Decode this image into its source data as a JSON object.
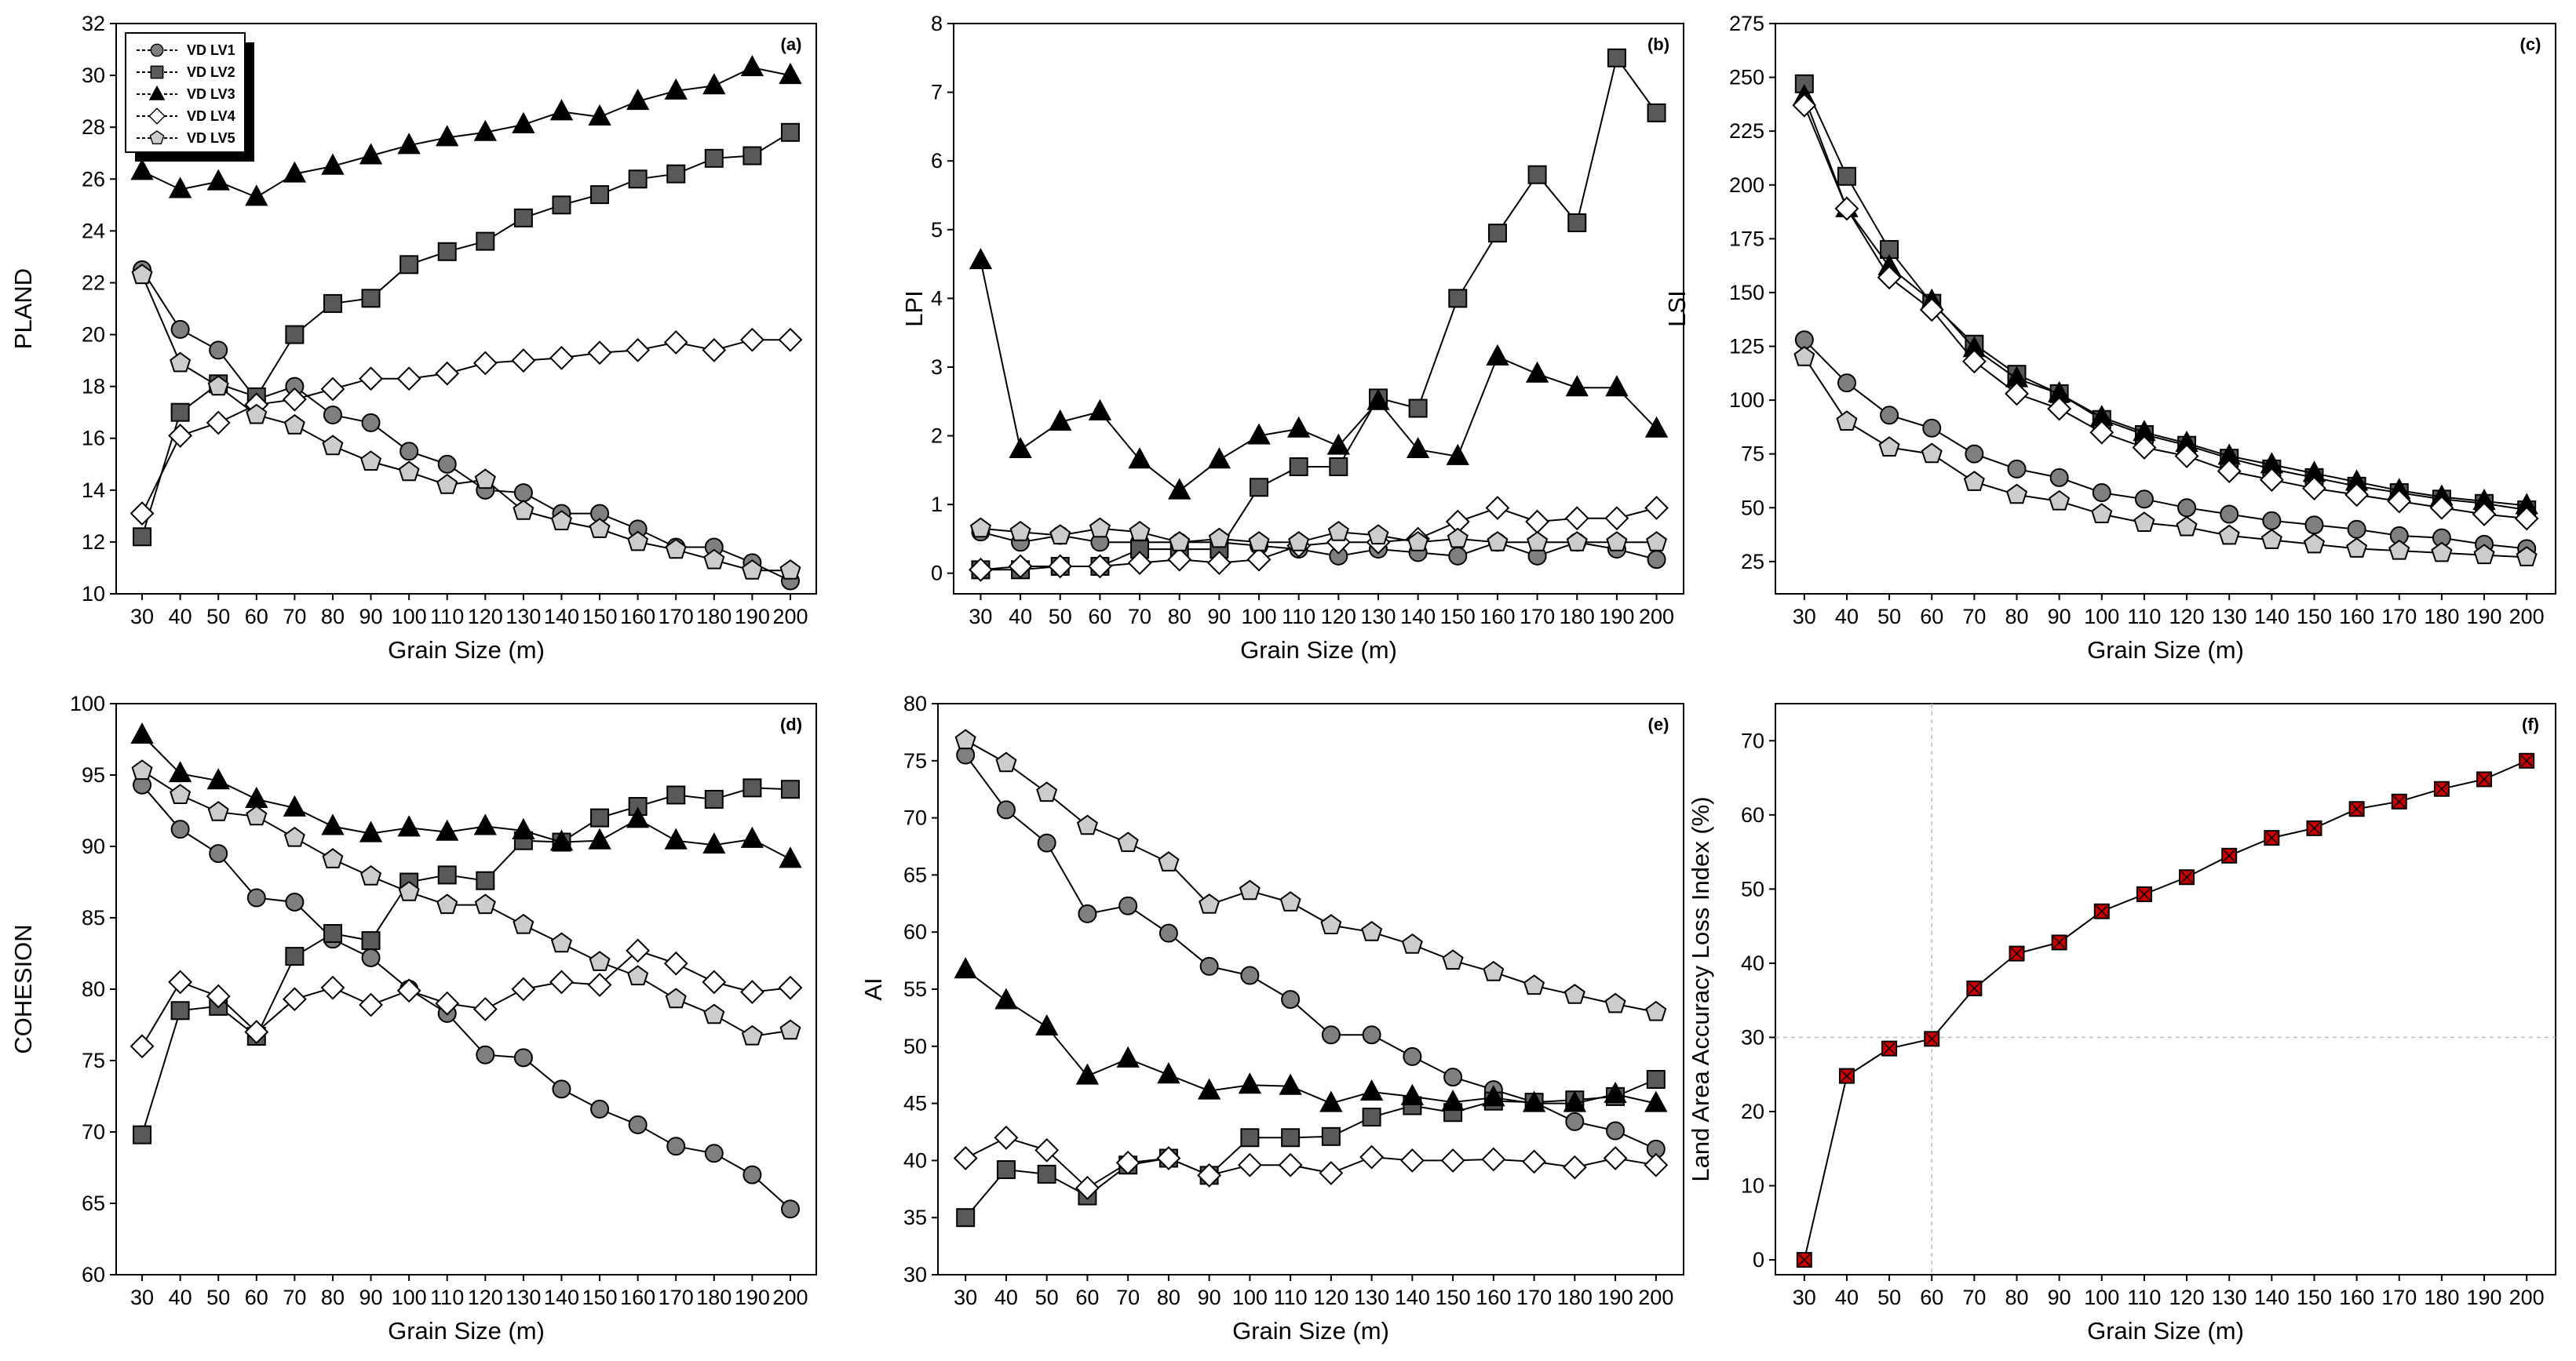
{
  "chart_data": [
    {
      "id": "a",
      "type": "line",
      "panel_label": "(a)",
      "xlabel": "Grain Size (m)",
      "ylabel": "PLAND",
      "x": [
        30,
        40,
        50,
        60,
        70,
        80,
        90,
        100,
        110,
        120,
        130,
        140,
        150,
        160,
        170,
        180,
        190,
        200
      ],
      "xlim": [
        30,
        200
      ],
      "ylim": [
        10,
        32
      ],
      "yticks": [
        10,
        12,
        14,
        16,
        18,
        20,
        22,
        24,
        26,
        28,
        30,
        32
      ],
      "legend": [
        "VD LV1",
        "VD LV2",
        "VD LV3",
        "VD LV4",
        "VD LV5"
      ],
      "series": [
        {
          "name": "VD LV1",
          "marker": "circle",
          "values": [
            22.5,
            20.2,
            19.4,
            17.5,
            18.0,
            16.9,
            16.6,
            15.5,
            15.0,
            14.0,
            13.9,
            13.1,
            13.1,
            12.5,
            11.8,
            11.8,
            11.2,
            10.5
          ]
        },
        {
          "name": "VD LV2",
          "marker": "square",
          "values": [
            12.2,
            17.0,
            18.1,
            17.6,
            20.0,
            21.2,
            21.4,
            22.7,
            23.2,
            23.6,
            24.5,
            25.0,
            25.4,
            26.0,
            26.2,
            26.8,
            26.9,
            27.8
          ]
        },
        {
          "name": "VD LV3",
          "marker": "triangle",
          "values": [
            26.3,
            25.6,
            25.9,
            25.3,
            26.2,
            26.5,
            26.9,
            27.3,
            27.6,
            27.8,
            28.1,
            28.6,
            28.4,
            29.0,
            29.4,
            29.6,
            30.3,
            30.0
          ]
        },
        {
          "name": "VD LV4",
          "marker": "diamond",
          "values": [
            13.1,
            16.1,
            16.6,
            17.3,
            17.5,
            17.9,
            18.3,
            18.3,
            18.5,
            18.9,
            19.0,
            19.1,
            19.3,
            19.4,
            19.7,
            19.4,
            19.8,
            19.8
          ]
        },
        {
          "name": "VD LV5",
          "marker": "pentagon",
          "values": [
            22.3,
            18.9,
            18.0,
            16.9,
            16.5,
            15.7,
            15.1,
            14.7,
            14.2,
            14.4,
            13.2,
            12.8,
            12.5,
            12.0,
            11.7,
            11.3,
            10.9,
            10.9
          ]
        }
      ]
    },
    {
      "id": "b",
      "type": "line",
      "panel_label": "(b)",
      "xlabel": "Grain Size (m)",
      "ylabel": "LPI",
      "x": [
        30,
        40,
        50,
        60,
        70,
        80,
        90,
        100,
        110,
        120,
        130,
        140,
        150,
        160,
        170,
        180,
        190,
        200
      ],
      "xlim": [
        30,
        200
      ],
      "ylim": [
        -0.3,
        8
      ],
      "yticks": [
        0,
        1,
        2,
        3,
        4,
        5,
        6,
        7,
        8
      ],
      "series": [
        {
          "name": "VD LV1",
          "marker": "circle",
          "values": [
            0.6,
            0.45,
            0.55,
            0.45,
            0.45,
            0.45,
            0.45,
            0.4,
            0.35,
            0.25,
            0.35,
            0.3,
            0.25,
            0.45,
            0.25,
            0.45,
            0.35,
            0.2
          ]
        },
        {
          "name": "VD LV2",
          "marker": "square",
          "values": [
            0.05,
            0.05,
            0.1,
            0.1,
            0.35,
            0.35,
            0.35,
            1.25,
            1.55,
            1.55,
            2.55,
            2.4,
            4.0,
            4.95,
            5.8,
            5.1,
            7.5,
            6.7
          ]
        },
        {
          "name": "VD LV3",
          "marker": "triangle",
          "values": [
            4.55,
            1.8,
            2.2,
            2.35,
            1.65,
            1.2,
            1.65,
            2.0,
            2.1,
            1.85,
            2.5,
            1.8,
            1.7,
            3.15,
            2.9,
            2.7,
            2.7,
            2.1
          ]
        },
        {
          "name": "VD LV4",
          "marker": "diamond",
          "values": [
            0.05,
            0.1,
            0.1,
            0.1,
            0.15,
            0.2,
            0.15,
            0.2,
            0.4,
            0.45,
            0.45,
            0.5,
            0.75,
            0.95,
            0.75,
            0.8,
            0.8,
            0.95
          ]
        },
        {
          "name": "VD LV5",
          "marker": "pentagon",
          "values": [
            0.65,
            0.6,
            0.55,
            0.65,
            0.6,
            0.45,
            0.5,
            0.45,
            0.45,
            0.6,
            0.55,
            0.45,
            0.5,
            0.45,
            0.45,
            0.45,
            0.45,
            0.45
          ]
        }
      ]
    },
    {
      "id": "c",
      "type": "line",
      "panel_label": "(c)",
      "xlabel": "Grain Size (m)",
      "ylabel": "LSI",
      "x": [
        30,
        40,
        50,
        60,
        70,
        80,
        90,
        100,
        110,
        120,
        130,
        140,
        150,
        160,
        170,
        180,
        190,
        200
      ],
      "xlim": [
        30,
        200
      ],
      "ylim": [
        10,
        275
      ],
      "yticks": [
        25,
        50,
        75,
        100,
        125,
        150,
        175,
        200,
        225,
        250,
        275
      ],
      "series": [
        {
          "name": "VD LV1",
          "marker": "circle",
          "values": [
            128,
            108,
            93,
            87,
            75,
            68,
            64,
            57,
            54,
            50,
            47,
            44,
            42,
            40,
            37,
            36,
            33,
            31
          ]
        },
        {
          "name": "VD LV2",
          "marker": "square",
          "values": [
            247,
            204,
            170,
            145,
            126,
            112,
            103,
            91,
            84,
            79,
            73,
            68,
            64,
            60,
            57,
            54,
            52,
            49
          ]
        },
        {
          "name": "VD LV3",
          "marker": "triangle",
          "values": [
            241,
            189,
            162,
            146,
            124,
            110,
            103,
            92,
            85,
            80,
            74,
            70,
            66,
            62,
            58,
            55,
            53,
            51
          ]
        },
        {
          "name": "VD LV4",
          "marker": "diamond",
          "values": [
            237,
            189,
            157,
            142,
            118,
            103,
            96,
            85,
            78,
            74,
            67,
            63,
            59,
            56,
            53,
            50,
            47,
            45
          ]
        },
        {
          "name": "VD LV5",
          "marker": "pentagon",
          "values": [
            120,
            90,
            78,
            75,
            62,
            56,
            53,
            47,
            43,
            41,
            37,
            35,
            33,
            31,
            30,
            29,
            28,
            27
          ]
        }
      ]
    },
    {
      "id": "d",
      "type": "line",
      "panel_label": "(d)",
      "xlabel": "Grain Size (m)",
      "ylabel": "COHESION",
      "x": [
        30,
        40,
        50,
        60,
        70,
        80,
        90,
        100,
        110,
        120,
        130,
        140,
        150,
        160,
        170,
        180,
        190,
        200
      ],
      "xlim": [
        30,
        200
      ],
      "ylim": [
        60,
        100
      ],
      "yticks": [
        60,
        65,
        70,
        75,
        80,
        85,
        90,
        95,
        100
      ],
      "series": [
        {
          "name": "VD LV1",
          "marker": "circle",
          "values": [
            94.3,
            91.2,
            89.5,
            86.4,
            86.1,
            83.5,
            82.2,
            80.0,
            78.3,
            75.4,
            75.2,
            73.0,
            71.6,
            70.5,
            69.0,
            68.5,
            67.0,
            64.6
          ]
        },
        {
          "name": "VD LV2",
          "marker": "square",
          "values": [
            69.8,
            78.5,
            78.8,
            76.7,
            82.3,
            83.9,
            83.4,
            87.5,
            88.0,
            87.6,
            90.4,
            90.3,
            92.0,
            92.8,
            93.6,
            93.3,
            94.1,
            94.0
          ]
        },
        {
          "name": "VD LV3",
          "marker": "triangle",
          "values": [
            97.8,
            95.1,
            94.6,
            93.3,
            92.7,
            91.4,
            90.9,
            91.3,
            91.0,
            91.4,
            91.1,
            90.3,
            90.4,
            91.9,
            90.4,
            90.1,
            90.5,
            89.1
          ]
        },
        {
          "name": "VD LV4",
          "marker": "diamond",
          "values": [
            76.0,
            80.5,
            79.5,
            77.0,
            79.3,
            80.1,
            78.9,
            79.9,
            79.0,
            78.6,
            80.0,
            80.5,
            80.3,
            82.7,
            81.8,
            80.5,
            79.8,
            80.1
          ]
        },
        {
          "name": "VD LV5",
          "marker": "pentagon",
          "values": [
            95.3,
            93.6,
            92.4,
            92.1,
            90.6,
            89.1,
            87.9,
            86.8,
            85.9,
            85.9,
            84.5,
            83.2,
            81.9,
            80.9,
            79.3,
            78.2,
            76.7,
            77.1
          ]
        }
      ]
    },
    {
      "id": "e",
      "type": "line",
      "panel_label": "(e)",
      "xlabel": "Grain Size (m)",
      "ylabel": "AI",
      "x": [
        30,
        40,
        50,
        60,
        70,
        80,
        90,
        100,
        110,
        120,
        130,
        140,
        150,
        160,
        170,
        180,
        190,
        200
      ],
      "xlim": [
        30,
        200
      ],
      "ylim": [
        30,
        80
      ],
      "yticks": [
        30,
        35,
        40,
        45,
        50,
        55,
        60,
        65,
        70,
        75,
        80
      ],
      "series": [
        {
          "name": "VD LV1",
          "marker": "circle",
          "values": [
            75.5,
            70.7,
            67.8,
            61.6,
            62.3,
            59.9,
            57.0,
            56.2,
            54.1,
            51.0,
            51.0,
            49.1,
            47.3,
            46.2,
            45.1,
            43.4,
            42.6,
            41.0
          ]
        },
        {
          "name": "VD LV2",
          "marker": "square",
          "values": [
            35.0,
            39.2,
            38.8,
            36.9,
            39.6,
            40.2,
            38.7,
            42.0,
            42.0,
            42.1,
            43.8,
            44.8,
            44.2,
            45.2,
            45.1,
            45.3,
            45.6,
            47.1
          ]
        },
        {
          "name": "VD LV3",
          "marker": "triangle",
          "values": [
            56.7,
            54.0,
            51.7,
            47.4,
            48.9,
            47.5,
            46.1,
            46.6,
            46.5,
            45.0,
            46.0,
            45.6,
            45.1,
            45.5,
            45.0,
            45.0,
            45.8,
            45.0
          ]
        },
        {
          "name": "VD LV4",
          "marker": "diamond",
          "values": [
            40.2,
            42.0,
            40.9,
            37.6,
            39.8,
            40.2,
            38.7,
            39.6,
            39.6,
            38.9,
            40.3,
            40.0,
            40.0,
            40.1,
            39.9,
            39.4,
            40.2,
            39.6
          ]
        },
        {
          "name": "VD LV5",
          "marker": "pentagon",
          "values": [
            76.8,
            74.8,
            72.2,
            69.3,
            67.8,
            66.1,
            62.4,
            63.6,
            62.6,
            60.6,
            60.0,
            58.9,
            57.5,
            56.5,
            55.3,
            54.5,
            53.7,
            53.0
          ]
        }
      ]
    },
    {
      "id": "f",
      "type": "line",
      "panel_label": "(f)",
      "xlabel": "Grain Size (m)",
      "ylabel": "Land  Area Accuracy Loss Index (%)",
      "x": [
        30,
        40,
        50,
        60,
        70,
        80,
        90,
        100,
        110,
        120,
        130,
        140,
        150,
        160,
        170,
        180,
        190,
        200
      ],
      "xlim": [
        30,
        200
      ],
      "ylim": [
        -2,
        75
      ],
      "yticks": [
        0,
        10,
        20,
        30,
        40,
        50,
        60,
        70
      ],
      "reference_x": 60,
      "reference_y": 30,
      "series": [
        {
          "name": "Land Area Accuracy Loss Index",
          "marker": "square-red",
          "values": [
            0,
            24.8,
            28.5,
            29.8,
            36.6,
            41.3,
            42.8,
            47.0,
            49.3,
            51.6,
            54.5,
            56.9,
            58.2,
            60.8,
            61.8,
            63.5,
            64.8,
            67.3
          ]
        }
      ]
    }
  ]
}
